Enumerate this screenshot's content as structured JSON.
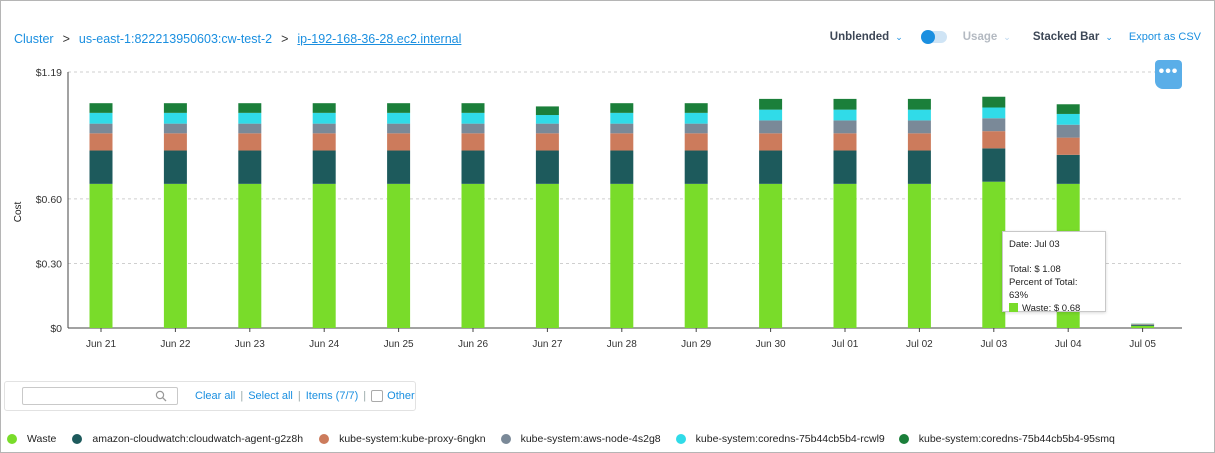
{
  "breadcrumb": {
    "items": [
      "Cluster",
      "us-east-1:822213950603:cw-test-2"
    ],
    "current": "ip-192-168-36-28.ec2.internal",
    "separator": ">"
  },
  "toolbar": {
    "cost_type": "Unblended",
    "usage_label": "Usage",
    "chart_type": "Stacked Bar",
    "export_label": "Export as CSV",
    "chevron": "⌄"
  },
  "more_button": {
    "label": "•••"
  },
  "chart_data": {
    "type": "bar",
    "stacked": true,
    "title": "",
    "xlabel": "",
    "ylabel": "Cost",
    "ylim": [
      0,
      1.19
    ],
    "yticks": [
      0,
      0.3,
      0.6,
      1.19
    ],
    "ytick_labels": [
      "$0",
      "$0.30",
      "$0.60",
      "$1.19"
    ],
    "categories": [
      "Jun 21",
      "Jun 22",
      "Jun 23",
      "Jun 24",
      "Jun 25",
      "Jun 26",
      "Jun 27",
      "Jun 28",
      "Jun 29",
      "Jun 30",
      "Jul 01",
      "Jul 02",
      "Jul 03",
      "Jul 04",
      "Jul 05"
    ],
    "series": [
      {
        "name": "Waste",
        "color": "#79dc2a",
        "values": [
          0.67,
          0.67,
          0.67,
          0.67,
          0.67,
          0.67,
          0.67,
          0.67,
          0.67,
          0.67,
          0.67,
          0.67,
          0.68,
          0.67,
          0.01
        ]
      },
      {
        "name": "amazon-cloudwatch:cloudwatch-agent-g2z8h",
        "color": "#1d5a5c",
        "values": [
          0.155,
          0.155,
          0.155,
          0.155,
          0.155,
          0.155,
          0.155,
          0.155,
          0.155,
          0.155,
          0.155,
          0.155,
          0.155,
          0.135,
          0.004
        ]
      },
      {
        "name": "kube-system:kube-proxy-6ngkn",
        "color": "#cc7b5c",
        "values": [
          0.08,
          0.08,
          0.08,
          0.08,
          0.08,
          0.08,
          0.08,
          0.08,
          0.08,
          0.08,
          0.08,
          0.08,
          0.08,
          0.08,
          0.002
        ]
      },
      {
        "name": "kube-system:aws-node-4s2g8",
        "color": "#7a8998",
        "values": [
          0.045,
          0.045,
          0.045,
          0.045,
          0.045,
          0.045,
          0.045,
          0.045,
          0.045,
          0.06,
          0.06,
          0.06,
          0.06,
          0.06,
          0.002
        ]
      },
      {
        "name": "kube-system:coredns-75b44cb5b4-rcwl9",
        "color": "#30dbe8",
        "values": [
          0.05,
          0.05,
          0.05,
          0.05,
          0.05,
          0.05,
          0.04,
          0.05,
          0.05,
          0.05,
          0.05,
          0.05,
          0.05,
          0.05,
          0.001
        ]
      },
      {
        "name": "kube-system:coredns-75b44cb5b4-95smq",
        "color": "#1b7f3a",
        "values": [
          0.045,
          0.045,
          0.045,
          0.045,
          0.045,
          0.045,
          0.04,
          0.045,
          0.045,
          0.05,
          0.05,
          0.05,
          0.05,
          0.045,
          0.001
        ]
      }
    ],
    "tooltip": {
      "date": "Date: Jul 03",
      "total": "Total: $ 1.08",
      "percent": "Percent of Total: 63%",
      "series_value": "Waste: $ 0.68"
    }
  },
  "filter": {
    "search_placeholder": "",
    "clear_all": "Clear all",
    "select_all": "Select all",
    "items": "Items (7/7)",
    "other": "Other",
    "separator": "|"
  }
}
